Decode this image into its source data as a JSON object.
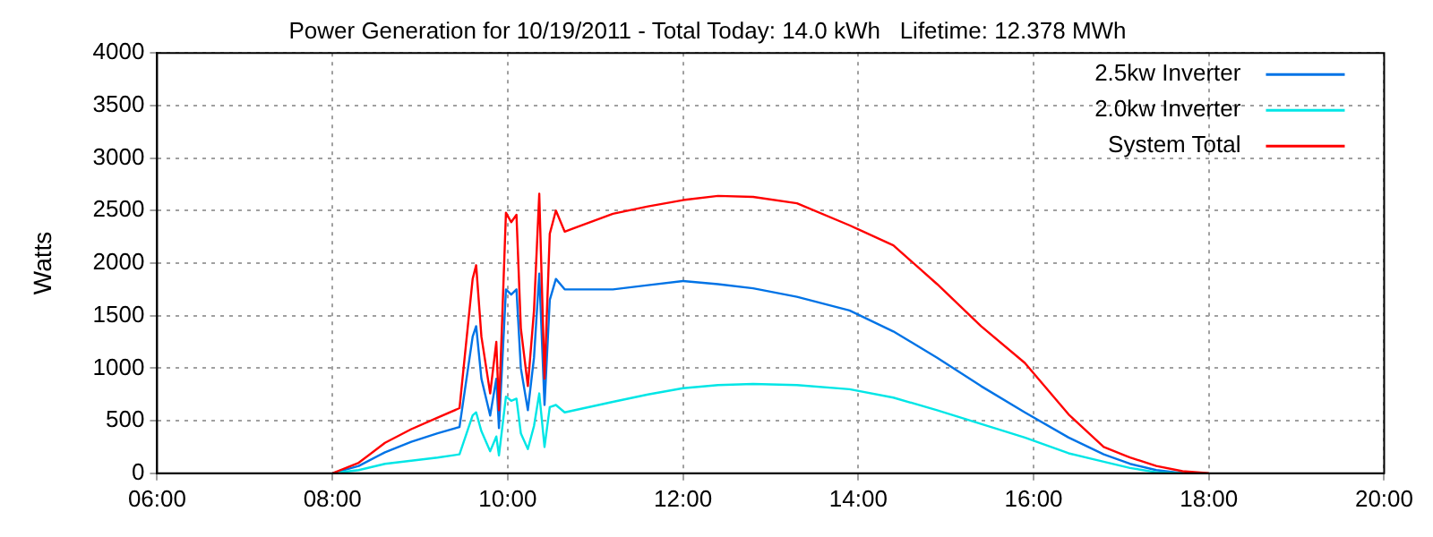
{
  "chart_data": {
    "type": "line",
    "title": "Power Generation for 10/19/2011 - Total Today: 14.0 kWh   Lifetime: 12.378 MWh",
    "ylabel": "Watts",
    "x": [
      8.0,
      8.3,
      8.6,
      8.9,
      9.2,
      9.45,
      9.6,
      9.64,
      9.7,
      9.8,
      9.87,
      9.9,
      9.98,
      10.04,
      10.1,
      10.15,
      10.23,
      10.3,
      10.36,
      10.42,
      10.48,
      10.55,
      10.65,
      11.2,
      11.6,
      12.0,
      12.4,
      12.8,
      13.3,
      13.9,
      14.4,
      14.9,
      15.4,
      15.9,
      16.4,
      16.8,
      17.1,
      17.4,
      17.7,
      18.0
    ],
    "series": [
      {
        "name": "2.5kw Inverter",
        "color": "#0073e6",
        "values": [
          0,
          70,
          200,
          300,
          380,
          440,
          1300,
          1400,
          900,
          550,
          900,
          430,
          1750,
          1700,
          1750,
          1000,
          600,
          1100,
          1900,
          650,
          1650,
          1850,
          1750,
          1750,
          1790,
          1830,
          1800,
          1760,
          1680,
          1550,
          1350,
          1100,
          830,
          580,
          340,
          180,
          90,
          30,
          0,
          null
        ]
      },
      {
        "name": "2.0kw Inverter",
        "color": "#00e6e6",
        "values": [
          0,
          30,
          90,
          120,
          150,
          180,
          550,
          580,
          400,
          210,
          350,
          170,
          730,
          690,
          710,
          380,
          230,
          450,
          760,
          250,
          630,
          650,
          580,
          680,
          750,
          810,
          840,
          850,
          840,
          800,
          720,
          600,
          470,
          340,
          190,
          110,
          50,
          10,
          0,
          null
        ]
      },
      {
        "name": "System Total",
        "color": "#ff0000",
        "values": [
          0,
          100,
          290,
          420,
          530,
          620,
          1850,
          1980,
          1300,
          760,
          1250,
          600,
          2480,
          2390,
          2460,
          1380,
          830,
          1550,
          2660,
          900,
          2280,
          2500,
          2300,
          2470,
          2540,
          2600,
          2640,
          2630,
          2570,
          2360,
          2170,
          1800,
          1400,
          1050,
          560,
          250,
          150,
          70,
          20,
          0
        ]
      }
    ],
    "xlim": [
      6,
      20
    ],
    "xticks": [
      {
        "value": 6,
        "label": "06:00"
      },
      {
        "value": 8,
        "label": "08:00"
      },
      {
        "value": 10,
        "label": "10:00"
      },
      {
        "value": 12,
        "label": "12:00"
      },
      {
        "value": 14,
        "label": "14:00"
      },
      {
        "value": 16,
        "label": "16:00"
      },
      {
        "value": 18,
        "label": "18:00"
      },
      {
        "value": 20,
        "label": "20:00"
      }
    ],
    "ylim": [
      0,
      4000
    ],
    "yticks": [
      0,
      500,
      1000,
      1500,
      2000,
      2500,
      3000,
      3500,
      4000
    ],
    "grid": true,
    "legend": "top right",
    "marker": "none",
    "line_style": "solid"
  }
}
